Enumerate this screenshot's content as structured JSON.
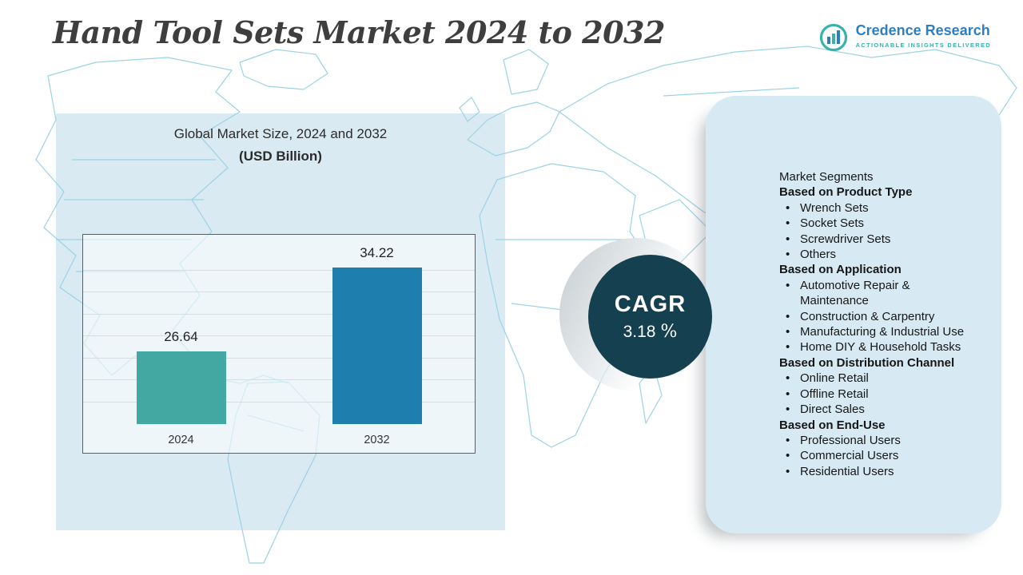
{
  "page": {
    "title": "Hand Tool Sets Market 2024 to 2032"
  },
  "brand": {
    "name": "Credence Research",
    "tagline": "Actionable Insights Delivered"
  },
  "chart_data": {
    "type": "bar",
    "title": "Global Market Size, 2024 and 2032",
    "subtitle": "(USD Billion)",
    "categories": [
      "2024",
      "2032"
    ],
    "values": [
      26.64,
      34.22
    ],
    "value_labels": [
      "26.64",
      "34.22"
    ],
    "bar_colors": [
      "#44a8a2",
      "#1e7fae"
    ],
    "xlabel": "",
    "ylabel": "",
    "ylim": [
      20,
      36
    ],
    "grid": true,
    "legend": "none"
  },
  "cagr": {
    "label": "CAGR",
    "value": "3.18",
    "unit": "%"
  },
  "segments": {
    "title": "Market Segments",
    "bullet": "•",
    "groups": [
      {
        "heading": "Based on Product Type",
        "items": [
          "Wrench Sets",
          "Socket Sets",
          "Screwdriver Sets",
          "Others"
        ]
      },
      {
        "heading": "Based on Application",
        "items": [
          "Automotive Repair & Maintenance",
          "Construction & Carpentry",
          "Manufacturing & Industrial Use",
          "Home DIY & Household Tasks"
        ]
      },
      {
        "heading": "Based on Distribution Channel",
        "items": [
          "Online Retail",
          "Offline Retail",
          "Direct Sales"
        ]
      },
      {
        "heading": "Based on End-Use",
        "items": [
          "Professional Users",
          "Commercial Users",
          "Residential Users"
        ]
      }
    ]
  },
  "colors": {
    "accent_teal": "#44a8a2",
    "accent_blue": "#1e7fae",
    "cagr_circle": "#14404f",
    "panel_bg": "#d9eaf3",
    "map_line": "#9bd3e4",
    "brand_blue": "#2e7fc2",
    "brand_teal": "#3ab2ac"
  }
}
